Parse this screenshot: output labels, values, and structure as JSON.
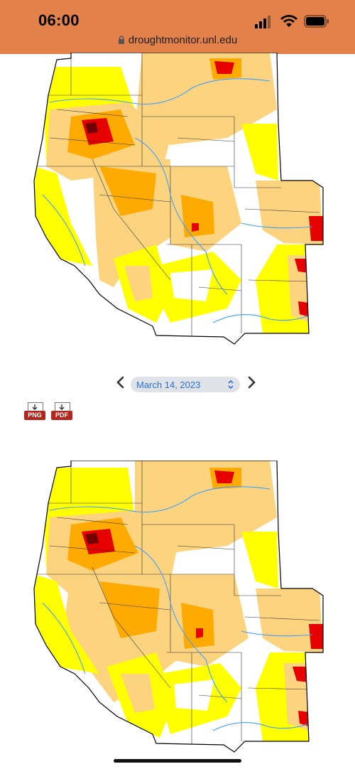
{
  "status_bar": {
    "time": "06:00"
  },
  "browser": {
    "url": "droughtmonitor.unl.edu"
  },
  "date_nav": {
    "selected_date": "March 14, 2023"
  },
  "downloads": {
    "png_label": "PNG",
    "pdf_label": "PDF"
  },
  "colors": {
    "d0": "#ffff00",
    "d1": "#fcd37f",
    "d2": "#ffaa00",
    "d3": "#e60000",
    "d4": "#730000",
    "water": "#3fa0ff",
    "topbar": "#e2814a"
  }
}
